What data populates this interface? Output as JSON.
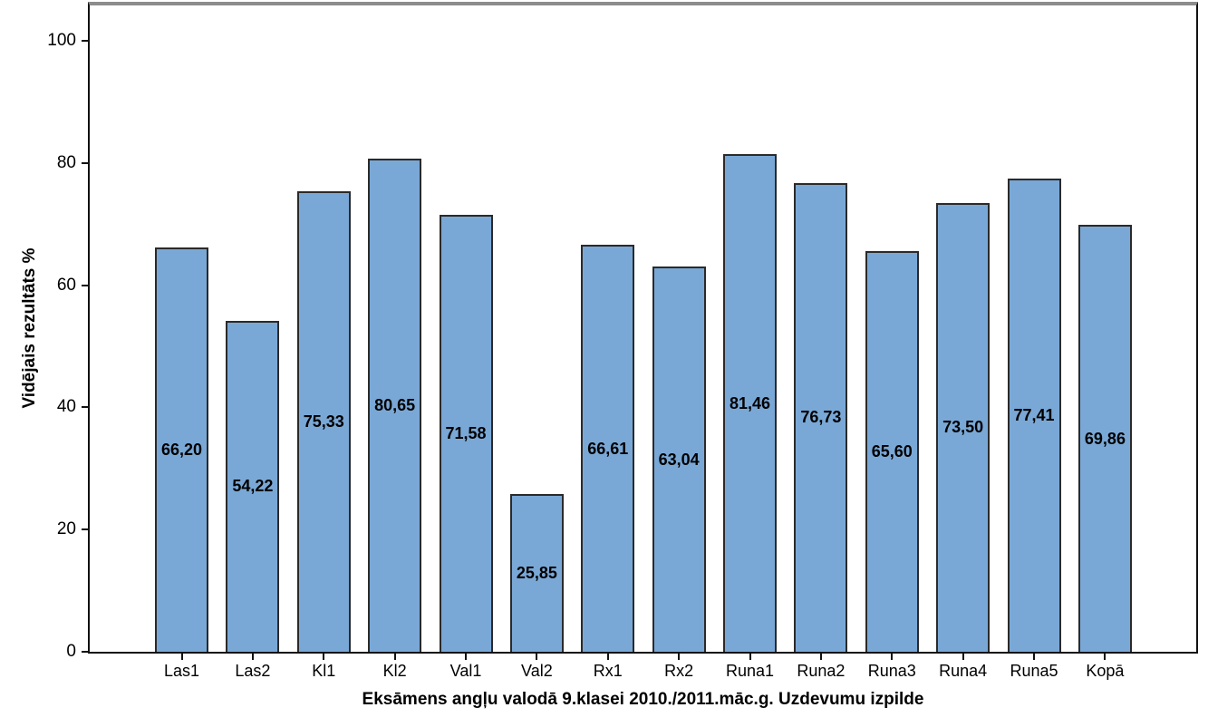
{
  "chart_data": {
    "type": "bar",
    "title": "",
    "xlabel": "Eksāmens angļu valodā 9.klasei 2010./2011.māc.g. Uzdevumu izpilde",
    "ylabel": "Vidējais rezultāts %",
    "categories": [
      "Las1",
      "Las2",
      "Kl1",
      "Kl2",
      "Val1",
      "Val2",
      "Rx1",
      "Rx2",
      "Runa1",
      "Runa2",
      "Runa3",
      "Runa4",
      "Runa5",
      "Kopā"
    ],
    "values": [
      66.2,
      54.22,
      75.33,
      80.65,
      71.58,
      25.85,
      66.61,
      63.04,
      81.46,
      76.73,
      65.6,
      73.5,
      77.41,
      69.86
    ],
    "value_labels": [
      "66,20",
      "54,22",
      "75,33",
      "80,65",
      "71,58",
      "25,85",
      "66,61",
      "63,04",
      "81,46",
      "76,73",
      "65,60",
      "73,50",
      "77,41",
      "69,86"
    ],
    "y_ticks": [
      0,
      20,
      40,
      60,
      80,
      100
    ],
    "y_tick_labels": [
      "0",
      "20",
      "40",
      "60",
      "80",
      "100"
    ],
    "ylim": [
      0,
      105.8
    ],
    "grid": false,
    "legend": false,
    "bar_color": "#7AA8D6",
    "bar_border_color": "#2a2a2a",
    "axis_color": "#111111",
    "frame_top_color": "#8c8c8c",
    "text_color": "#000000"
  }
}
